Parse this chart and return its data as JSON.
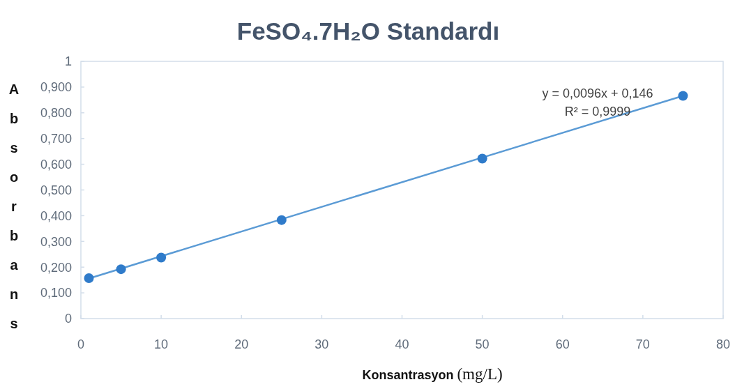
{
  "chart_data": {
    "type": "scatter",
    "title": "FeSO₄.7H₂O Standardı",
    "xlabel": "Konsantrasyon (mg/L)",
    "ylabel": "Absorbans",
    "xlim": [
      0,
      80
    ],
    "xticks": [
      0,
      10,
      20,
      30,
      40,
      50,
      60,
      70,
      80
    ],
    "ylim": [
      0,
      1
    ],
    "yticks": [
      0,
      {
        "value": 0.1,
        "label": "0,100"
      },
      {
        "value": 0.2,
        "label": "0,200"
      },
      {
        "value": 0.3,
        "label": "0,300"
      },
      {
        "value": 0.4,
        "label": "0,400"
      },
      {
        "value": 0.5,
        "label": "0,500"
      },
      {
        "value": 0.6,
        "label": "0,600"
      },
      {
        "value": 0.7,
        "label": "0,700"
      },
      {
        "value": 0.8,
        "label": "0,800"
      },
      {
        "value": 0.9,
        "label": "0,900"
      },
      1
    ],
    "series": [
      {
        "type": "line",
        "color": "#5b9bd5",
        "x": [
          1,
          75
        ],
        "values": [
          0.156,
          0.866
        ]
      },
      {
        "marker": "circle",
        "color": "#2f7bca",
        "x": [
          1,
          5,
          10,
          25,
          50,
          75
        ],
        "values": [
          0.157,
          0.192,
          0.237,
          0.383,
          0.622,
          0.866
        ]
      }
    ],
    "annotations": [
      "y = 0,0096x + 0,146",
      "R² = 0,9999"
    ]
  }
}
